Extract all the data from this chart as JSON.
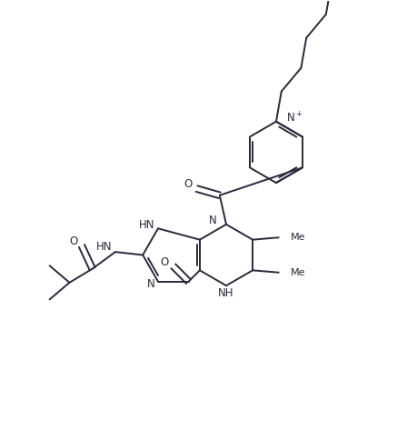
{
  "bg_color": "#ffffff",
  "line_color": "#2a2a3a",
  "figsize": [
    4.59,
    4.84
  ],
  "dpi": 100,
  "bond_lw": 1.4,
  "font_size": 8.5,
  "font_color": "#2a2a3a",
  "xlim": [
    0,
    9.5
  ],
  "ylim": [
    0,
    10.0
  ]
}
